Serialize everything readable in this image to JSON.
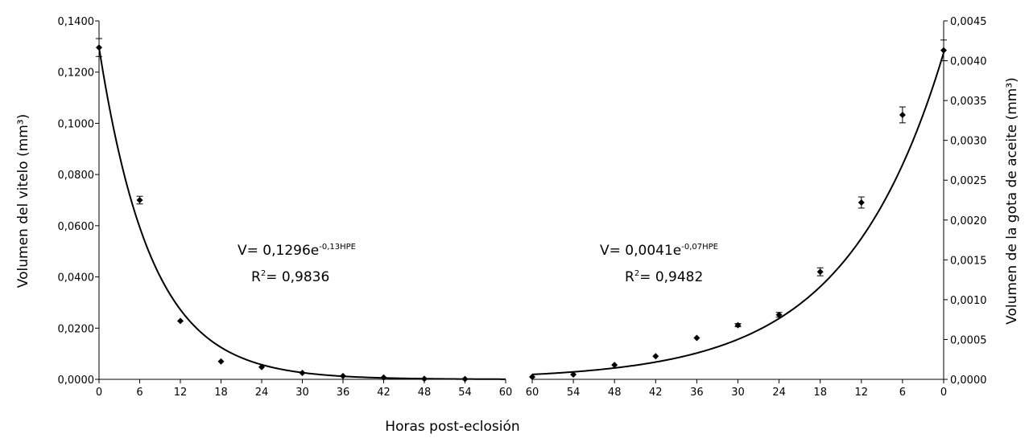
{
  "chart_data": [
    {
      "type": "scatter",
      "panel": "left",
      "ylabel": "Volumen del vitelo (mm³)",
      "xlim": [
        0,
        60
      ],
      "ylim": [
        0,
        0.14
      ],
      "x_ticks": [
        "0",
        "6",
        "12",
        "18",
        "24",
        "30",
        "36",
        "42",
        "48",
        "54",
        "60"
      ],
      "y_ticks": [
        "0,0000",
        "0,0200",
        "0,0400",
        "0,0600",
        "0,0800",
        "0,1000",
        "0,1200",
        "0,1400"
      ],
      "points": [
        {
          "x": 0,
          "y": 0.1296,
          "err": 0.0035
        },
        {
          "x": 6,
          "y": 0.07,
          "err": 0.0015
        },
        {
          "x": 12,
          "y": 0.0228,
          "err": 0
        },
        {
          "x": 18,
          "y": 0.007,
          "err": 0
        },
        {
          "x": 24,
          "y": 0.0048,
          "err": 0
        },
        {
          "x": 30,
          "y": 0.0025,
          "err": 0
        },
        {
          "x": 36,
          "y": 0.0013,
          "err": 0
        },
        {
          "x": 42,
          "y": 0.0007,
          "err": 0
        },
        {
          "x": 48,
          "y": 0.0002,
          "err": 0
        },
        {
          "x": 54,
          "y": 0.0001,
          "err": 0
        }
      ],
      "fit": {
        "a": 0.1296,
        "b": -0.13
      },
      "equation": {
        "main": "V= 0,1296e",
        "exponent": "-0,13HPE",
        "r2_label": "R",
        "r2_sup": "2",
        "r2_value": "= 0,9836"
      }
    },
    {
      "type": "scatter",
      "panel": "right",
      "ylabel": "Volumen de la gota de aceite (mm³)",
      "x_reversed": true,
      "xlim": [
        60,
        0
      ],
      "ylim": [
        0,
        0.0045
      ],
      "x_ticks": [
        "60",
        "54",
        "48",
        "42",
        "36",
        "30",
        "24",
        "18",
        "12",
        "6",
        "0"
      ],
      "y_ticks": [
        "0,0000",
        "0,0005",
        "0,0010",
        "0,0015",
        "0,0020",
        "0,0025",
        "0,0030",
        "0,0035",
        "0,0040",
        "0,0045"
      ],
      "points": [
        {
          "x": 60,
          "y": 3e-05,
          "err": 0
        },
        {
          "x": 54,
          "y": 6e-05,
          "err": 0
        },
        {
          "x": 48,
          "y": 0.00018,
          "err": 0
        },
        {
          "x": 42,
          "y": 0.00029,
          "err": 0
        },
        {
          "x": 36,
          "y": 0.00052,
          "err": 0
        },
        {
          "x": 30,
          "y": 0.00068,
          "err": 2e-05
        },
        {
          "x": 24,
          "y": 0.00081,
          "err": 3e-05
        },
        {
          "x": 18,
          "y": 0.00135,
          "err": 5e-05
        },
        {
          "x": 12,
          "y": 0.00222,
          "err": 7e-05
        },
        {
          "x": 6,
          "y": 0.00332,
          "err": 0.0001
        },
        {
          "x": 0,
          "y": 0.00413,
          "err": 0.00013
        }
      ],
      "fit": {
        "a": 0.0041,
        "b": -0.07
      },
      "equation": {
        "main": "V= 0,0041e",
        "exponent": "-0,07HPE",
        "r2_label": "R",
        "r2_sup": "2",
        "r2_value": "= 0,9482"
      }
    }
  ],
  "xlabel": "Horas post-eclosión"
}
